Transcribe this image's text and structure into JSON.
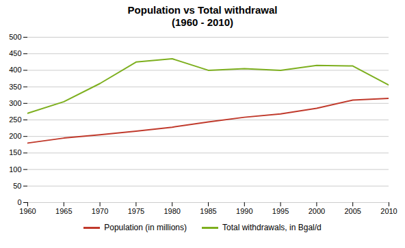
{
  "chart_data": {
    "type": "line",
    "title": "Population vs Total withdrawal\n(1960 - 2010)",
    "x": [
      1960,
      1965,
      1970,
      1975,
      1980,
      1985,
      1990,
      1995,
      2000,
      2005,
      2010
    ],
    "series": [
      {
        "name": "Population (in millions)",
        "color": "#c0392b",
        "values": [
          180,
          195,
          205,
          216,
          228,
          244,
          258,
          268,
          285,
          310,
          315
        ]
      },
      {
        "name": "Total withdrawals, in Bgal/d",
        "color": "#7daf1e",
        "values": [
          270,
          305,
          360,
          425,
          435,
          400,
          405,
          400,
          415,
          413,
          355
        ]
      }
    ],
    "xlim": [
      1960,
      2010
    ],
    "xticks": [
      1960,
      1965,
      1970,
      1975,
      1980,
      1985,
      1990,
      1995,
      2000,
      2005,
      2010
    ],
    "ylim": [
      0,
      500
    ],
    "yticks": [
      0,
      50,
      100,
      150,
      200,
      250,
      300,
      350,
      400,
      450,
      500
    ],
    "grid": true,
    "legend": "bottom"
  }
}
